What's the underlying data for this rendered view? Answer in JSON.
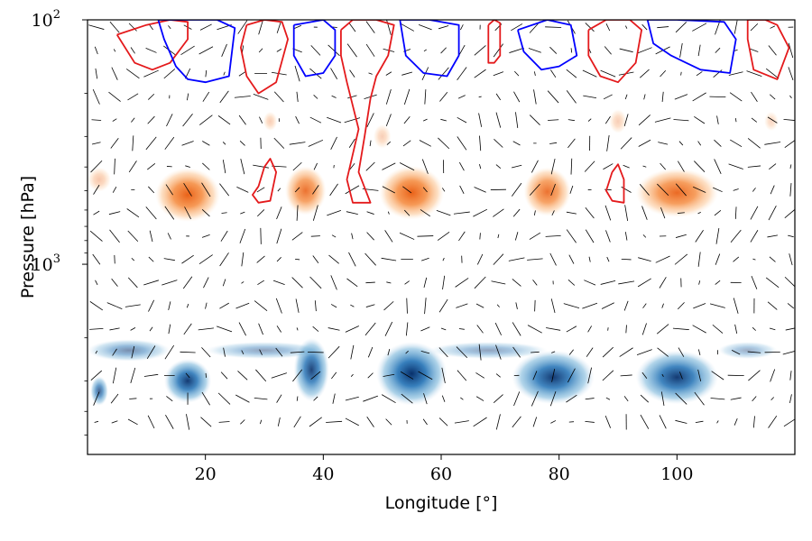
{
  "chart_data": {
    "type": "contour",
    "title": "",
    "xlabel": "Longitude [°]",
    "ylabel": "Pressure [hPa]",
    "xlim": [
      0,
      120
    ],
    "ylim_hpa": [
      100,
      6000
    ],
    "yscale": "log-inverted",
    "x_ticks": [
      {
        "value": 20,
        "label": "20"
      },
      {
        "value": 40,
        "label": "40"
      },
      {
        "value": 60,
        "label": "60"
      },
      {
        "value": 80,
        "label": "80"
      },
      {
        "value": 100,
        "label": "100"
      }
    ],
    "y_major_ticks": [
      {
        "value": 100,
        "base": "10",
        "exp": "2"
      },
      {
        "value": 1000,
        "base": "10",
        "exp": "3"
      }
    ],
    "y_minor_ticks": [
      200,
      300,
      400,
      500,
      600,
      700,
      800,
      900,
      2000,
      3000,
      4000,
      5000
    ],
    "positive_fill_color": "#f26b12",
    "negative_fill_color": "#08519c",
    "positive_contour_color": "#e41a1c",
    "negative_contour_color": "#0000ff",
    "positive_regions": [
      {
        "lon": 2,
        "p": 450,
        "w": 2,
        "h": 0.05,
        "a": 0.35
      },
      {
        "lon": 17,
        "p": 520,
        "w": 5.5,
        "h": 0.11,
        "a": 0.95
      },
      {
        "lon": 37,
        "p": 500,
        "w": 3.5,
        "h": 0.1,
        "a": 0.85
      },
      {
        "lon": 55,
        "p": 510,
        "w": 5.5,
        "h": 0.11,
        "a": 0.95
      },
      {
        "lon": 78,
        "p": 505,
        "w": 4,
        "h": 0.1,
        "a": 0.85
      },
      {
        "lon": 100,
        "p": 510,
        "w": 7,
        "h": 0.1,
        "a": 0.9
      },
      {
        "lon": 31,
        "p": 260,
        "w": 1.2,
        "h": 0.04,
        "a": 0.3
      },
      {
        "lon": 50,
        "p": 300,
        "w": 1.5,
        "h": 0.05,
        "a": 0.3
      },
      {
        "lon": 90,
        "p": 260,
        "w": 1.5,
        "h": 0.05,
        "a": 0.3
      },
      {
        "lon": 116,
        "p": 260,
        "w": 1.2,
        "h": 0.04,
        "a": 0.25
      }
    ],
    "negative_regions": [
      {
        "lon": 7,
        "p": 2250,
        "w": 7,
        "h": 0.045,
        "a": 0.55
      },
      {
        "lon": 2,
        "p": 3300,
        "w": 1.5,
        "h": 0.06,
        "a": 0.75
      },
      {
        "lon": 17,
        "p": 3000,
        "w": 4,
        "h": 0.09,
        "a": 0.95
      },
      {
        "lon": 38,
        "p": 2700,
        "w": 3,
        "h": 0.13,
        "a": 0.9
      },
      {
        "lon": 55,
        "p": 2800,
        "w": 6,
        "h": 0.13,
        "a": 1
      },
      {
        "lon": 79,
        "p": 2900,
        "w": 7,
        "h": 0.11,
        "a": 0.95
      },
      {
        "lon": 100,
        "p": 2900,
        "w": 7,
        "h": 0.11,
        "a": 0.95
      },
      {
        "lon": 30,
        "p": 2250,
        "w": 10,
        "h": 0.035,
        "a": 0.45
      },
      {
        "lon": 68,
        "p": 2250,
        "w": 10,
        "h": 0.035,
        "a": 0.45
      },
      {
        "lon": 112,
        "p": 2250,
        "w": 5,
        "h": 0.035,
        "a": 0.4
      }
    ],
    "positive_contours": [
      [
        [
          5,
          115
        ],
        [
          10,
          105
        ],
        [
          14,
          100
        ],
        [
          17,
          102
        ],
        [
          17,
          120
        ],
        [
          14,
          150
        ],
        [
          11,
          160
        ],
        [
          8,
          150
        ],
        [
          5,
          115
        ]
      ],
      [
        [
          27,
          105
        ],
        [
          30,
          100
        ],
        [
          33,
          102
        ],
        [
          34,
          120
        ],
        [
          32,
          180
        ],
        [
          29,
          200
        ],
        [
          27,
          170
        ],
        [
          26,
          130
        ],
        [
          27,
          105
        ]
      ],
      [
        [
          29,
          480
        ],
        [
          30,
          400
        ],
        [
          31,
          370
        ],
        [
          32,
          420
        ],
        [
          31,
          550
        ],
        [
          29,
          560
        ],
        [
          28,
          520
        ],
        [
          29,
          480
        ]
      ],
      [
        [
          43,
          110
        ],
        [
          45,
          100
        ],
        [
          49,
          100
        ],
        [
          52,
          105
        ],
        [
          51,
          140
        ],
        [
          49,
          170
        ],
        [
          48,
          210
        ],
        [
          47,
          300
        ],
        [
          46,
          420
        ],
        [
          48,
          560
        ],
        [
          45,
          560
        ],
        [
          44,
          450
        ],
        [
          46,
          280
        ],
        [
          44,
          180
        ],
        [
          43,
          140
        ],
        [
          43,
          110
        ]
      ],
      [
        [
          68,
          105
        ],
        [
          69,
          100
        ],
        [
          70,
          103
        ],
        [
          70,
          140
        ],
        [
          69,
          150
        ],
        [
          68,
          150
        ],
        [
          68,
          105
        ]
      ],
      [
        [
          85,
          110
        ],
        [
          88,
          100
        ],
        [
          92,
          100
        ],
        [
          94,
          110
        ],
        [
          93,
          150
        ],
        [
          90,
          180
        ],
        [
          87,
          170
        ],
        [
          85,
          140
        ],
        [
          85,
          110
        ]
      ],
      [
        [
          89,
          420
        ],
        [
          90,
          390
        ],
        [
          91,
          450
        ],
        [
          91,
          560
        ],
        [
          89,
          550
        ],
        [
          88,
          500
        ],
        [
          89,
          420
        ]
      ],
      [
        [
          112,
          100
        ],
        [
          115,
          100
        ],
        [
          117,
          105
        ],
        [
          119,
          130
        ],
        [
          117,
          175
        ],
        [
          113,
          160
        ],
        [
          112,
          120
        ],
        [
          112,
          100
        ]
      ]
    ],
    "negative_contours": [
      [
        [
          12,
          100
        ],
        [
          18,
          100
        ],
        [
          22,
          100
        ],
        [
          25,
          108
        ],
        [
          24,
          170
        ],
        [
          20,
          180
        ],
        [
          17,
          175
        ],
        [
          15,
          155
        ],
        [
          13,
          120
        ],
        [
          12,
          100
        ]
      ],
      [
        [
          35,
          105
        ],
        [
          40,
          100
        ],
        [
          42,
          110
        ],
        [
          42,
          140
        ],
        [
          40,
          165
        ],
        [
          37,
          170
        ],
        [
          35,
          140
        ],
        [
          35,
          105
        ]
      ],
      [
        [
          53,
          100
        ],
        [
          58,
          100
        ],
        [
          63,
          105
        ],
        [
          63,
          140
        ],
        [
          61,
          170
        ],
        [
          57,
          165
        ],
        [
          54,
          140
        ],
        [
          53,
          100
        ]
      ],
      [
        [
          73,
          110
        ],
        [
          78,
          100
        ],
        [
          82,
          105
        ],
        [
          83,
          140
        ],
        [
          80,
          155
        ],
        [
          77,
          160
        ],
        [
          74,
          135
        ],
        [
          73,
          110
        ]
      ],
      [
        [
          95,
          100
        ],
        [
          100,
          100
        ],
        [
          108,
          102
        ],
        [
          110,
          120
        ],
        [
          109,
          165
        ],
        [
          104,
          160
        ],
        [
          99,
          140
        ],
        [
          96,
          125
        ],
        [
          95,
          100
        ]
      ]
    ]
  }
}
